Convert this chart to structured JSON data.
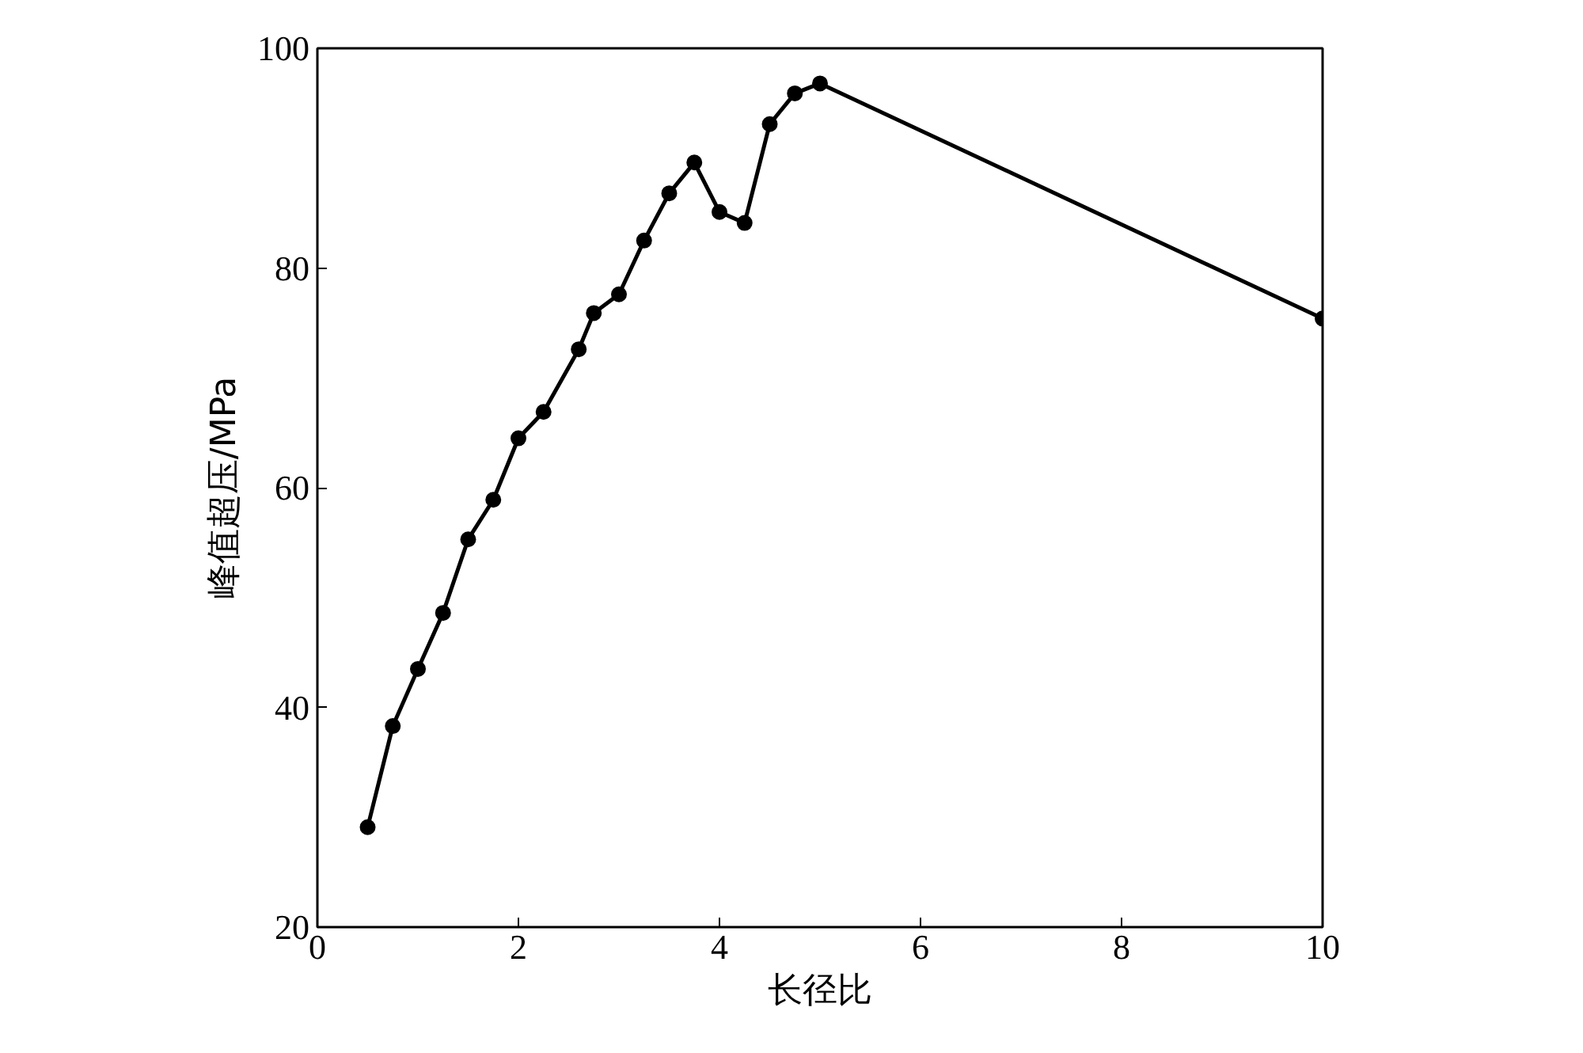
{
  "chart_data": {
    "type": "line",
    "xlabel": "长径比",
    "ylabel": "峰值超压/MPa",
    "x": [
      0.5,
      0.75,
      1.0,
      1.25,
      1.5,
      1.75,
      2.0,
      2.25,
      2.6,
      2.75,
      3.0,
      3.25,
      3.5,
      3.75,
      4.0,
      4.25,
      4.5,
      4.75,
      5.0,
      10
    ],
    "series": [
      {
        "color": "#000000",
        "values": [
          29.1,
          38.3,
          43.5,
          48.6,
          55.3,
          58.9,
          64.5,
          66.9,
          72.6,
          75.9,
          77.6,
          82.5,
          86.8,
          89.6,
          85.1,
          84.1,
          93.1,
          95.9,
          96.8,
          75.4
        ]
      }
    ],
    "xlim": [
      0,
      10
    ],
    "xticks": [
      0,
      2,
      4,
      6,
      8,
      10
    ],
    "ylim": [
      20,
      100
    ],
    "yticks": [
      20,
      40,
      60,
      80,
      100
    ],
    "marker": "circle",
    "line_style": "solid",
    "grid": false
  }
}
